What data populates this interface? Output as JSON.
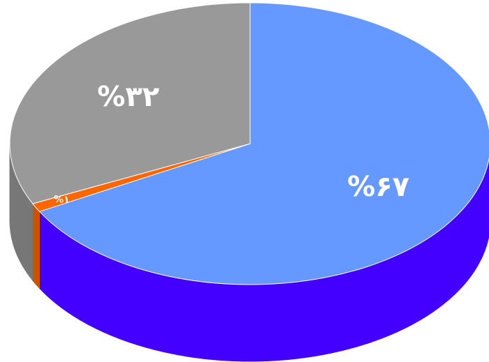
{
  "chart_data": {
    "type": "pie",
    "style": "3d",
    "start_angle_deg": 270,
    "direction": "clockwise",
    "slices": [
      {
        "label": "%۶۷",
        "value": 67,
        "color": "#6699ff",
        "side_color": "#4400ff"
      },
      {
        "label": "%۱",
        "value": 1,
        "color": "#ff6600",
        "side_color": "#cc5200"
      },
      {
        "label": "%۳۲",
        "value": 32,
        "color": "#999999",
        "side_color": "#777777"
      }
    ],
    "legend": "none"
  }
}
